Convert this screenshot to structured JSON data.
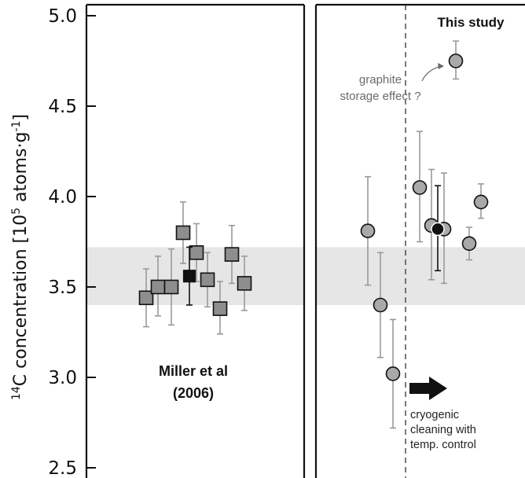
{
  "chart_data": {
    "type": "scatter",
    "ylabel": "14C concentration [105 atoms·g-1]",
    "ylabel_parts": {
      "sup1": "14",
      "main": "C concentration [10",
      "sup2": "5",
      "mid": " atoms·g",
      "sup3": "-1",
      "end": "]"
    },
    "ylim": [
      2.5,
      5.05
    ],
    "yticks": [
      "2.5",
      "3.0",
      "3.5",
      "4.0",
      "4.5",
      "5.0"
    ],
    "band": {
      "y_from": 3.4,
      "y_to": 3.72
    },
    "colors": {
      "square_gray": "#8e8e8e",
      "square_black": "#111111",
      "circle_gray": "#a9a9a9",
      "circle_black": "#111111",
      "errorbar_gray": "#9a9a9a",
      "band": "#e6e6e6"
    },
    "panels": [
      {
        "title": "",
        "annotation_line1": "Miller et al",
        "annotation_line2": "(2006)",
        "series": [
          {
            "marker": "square",
            "color": "gray",
            "points": [
              {
                "y": 3.44,
                "err_low": 3.28,
                "err_high": 3.6
              },
              {
                "y": 3.5,
                "err_low": 3.34,
                "err_high": 3.67
              },
              {
                "y": 3.5,
                "err_low": 3.29,
                "err_high": 3.71
              },
              {
                "y": 3.8,
                "err_low": 3.63,
                "err_high": 3.97
              },
              {
                "y": 3.69,
                "err_low": 3.53,
                "err_high": 3.85
              },
              {
                "y": 3.54,
                "err_low": 3.39,
                "err_high": 3.69
              },
              {
                "y": 3.38,
                "err_low": 3.24,
                "err_high": 3.53
              },
              {
                "y": 3.68,
                "err_low": 3.52,
                "err_high": 3.84
              },
              {
                "y": 3.52,
                "err_low": 3.37,
                "err_high": 3.67
              }
            ]
          },
          {
            "marker": "square",
            "color": "black",
            "points": [
              {
                "y": 3.56,
                "err_low": 3.4,
                "err_high": 3.72
              }
            ]
          }
        ]
      },
      {
        "title": "This study",
        "note_gray_line1": "graphite",
        "note_gray_line2": "storage effect ?",
        "note_line1": "cryogenic",
        "note_line2": "cleaning with",
        "note_line3": "temp. control",
        "series": [
          {
            "marker": "circle",
            "color": "gray",
            "points": [
              {
                "y": 3.81,
                "err_low": 3.51,
                "err_high": 4.11
              },
              {
                "y": 3.4,
                "err_low": 3.11,
                "err_high": 3.69
              },
              {
                "y": 3.02,
                "err_low": 2.72,
                "err_high": 3.32
              },
              {
                "y": 4.05,
                "err_low": 3.75,
                "err_high": 4.36
              },
              {
                "y": 3.84,
                "err_low": 3.54,
                "err_high": 4.15
              },
              {
                "y": 3.82,
                "err_low": 3.52,
                "err_high": 4.13
              },
              {
                "y": 4.75,
                "err_low": 4.65,
                "err_high": 4.86
              },
              {
                "y": 3.74,
                "err_low": 3.65,
                "err_high": 3.83
              },
              {
                "y": 3.97,
                "err_low": 3.88,
                "err_high": 4.07
              }
            ]
          },
          {
            "marker": "circle",
            "color": "black",
            "points": [
              {
                "y": 3.82,
                "err_low": 3.59,
                "err_high": 4.06
              }
            ]
          }
        ]
      }
    ]
  }
}
